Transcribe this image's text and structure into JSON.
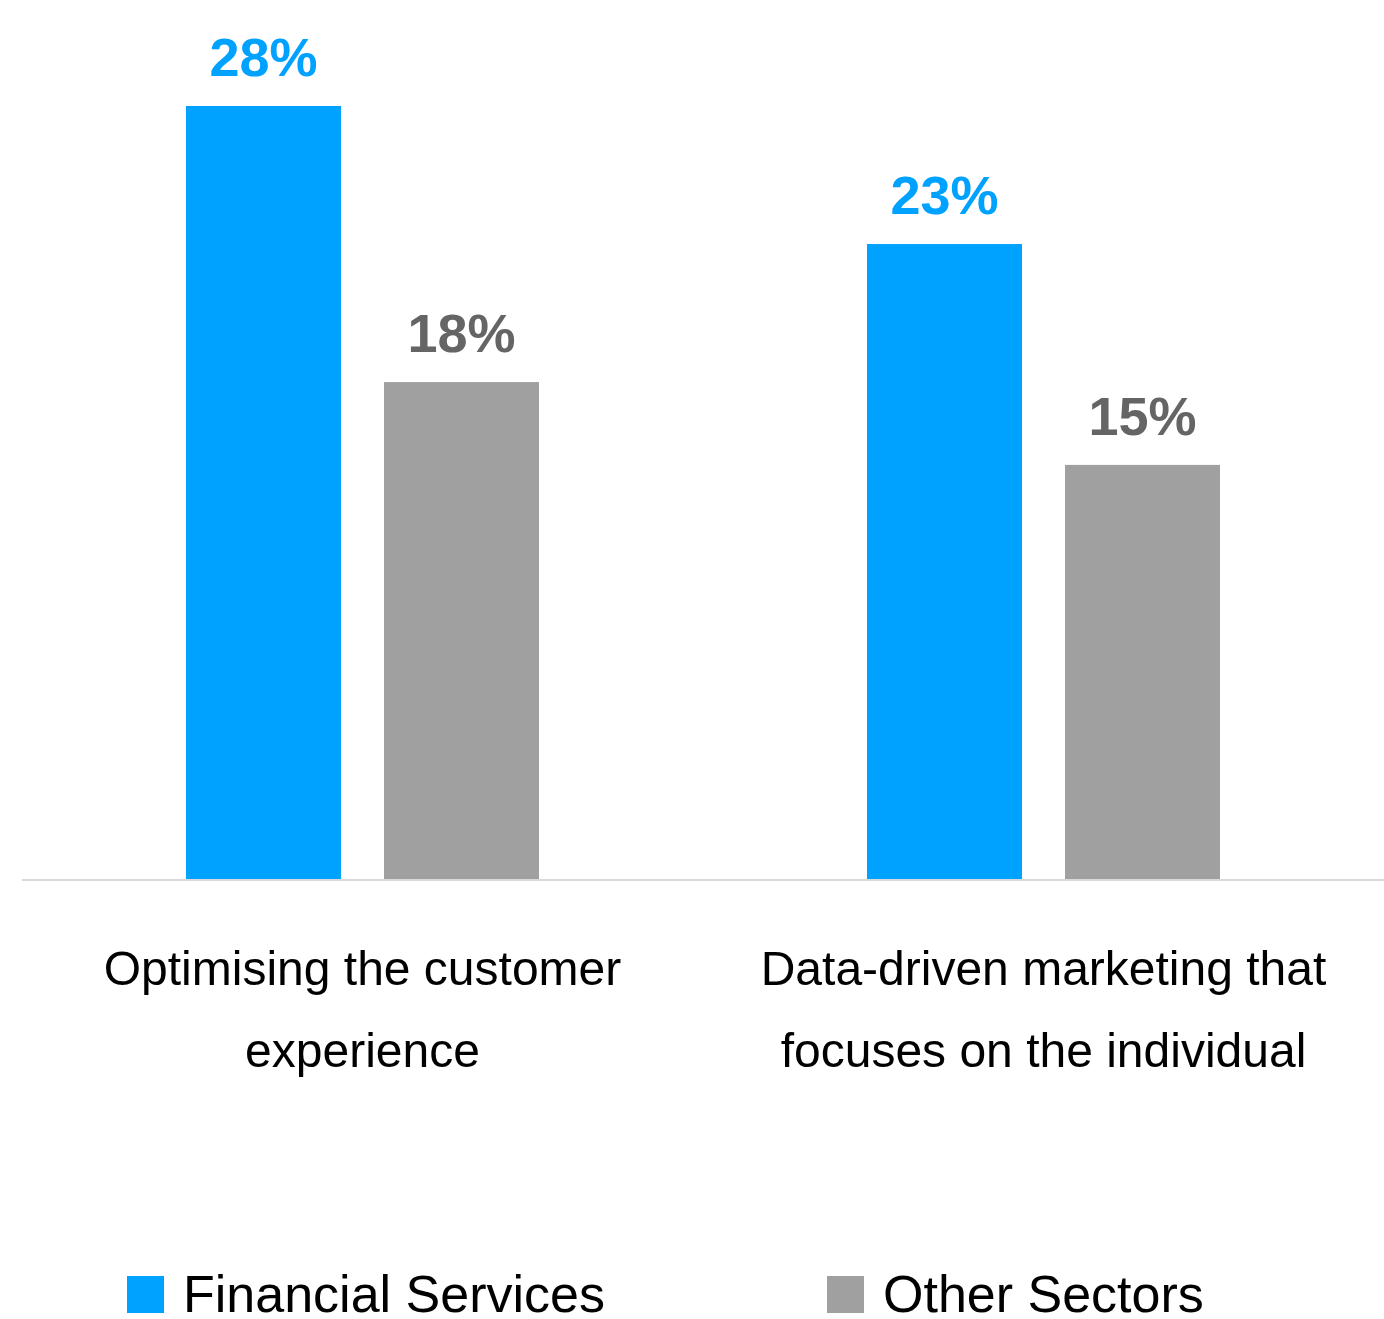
{
  "chart_data": {
    "type": "bar",
    "categories": [
      "Optimising the customer experience",
      "Data-driven marketing that focuses on the individual"
    ],
    "series": [
      {
        "name": "Financial Services",
        "color": "#00a2ff",
        "values": [
          28,
          23
        ],
        "value_labels": [
          "28%",
          "23%"
        ]
      },
      {
        "name": "Other Sectors",
        "color": "#a0a0a0",
        "values": [
          18,
          15
        ],
        "value_labels": [
          "18%",
          "15%"
        ]
      }
    ],
    "legend": "bottom"
  }
}
